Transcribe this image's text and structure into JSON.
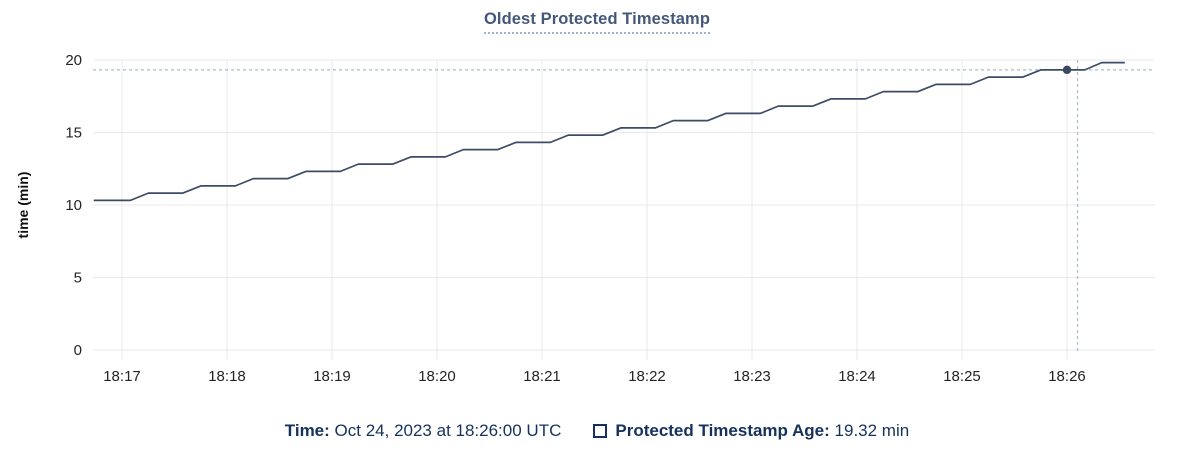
{
  "title": "Oldest Protected Timestamp",
  "colors": {
    "title": "#44587b",
    "title_underline": "#9fb3cb",
    "legend_text": "#16325c",
    "line": "#3d4c66",
    "marker": "#394960",
    "crosshair": "#a9bccb",
    "gridline": "#e9e9e9",
    "tick_mark": "#dedede",
    "tick_text": "#242424"
  },
  "legend": {
    "time_label": "Time:",
    "time_value": "Oct 24, 2023 at 18:26:00 UTC",
    "series_label": "Protected Timestamp Age:",
    "series_value": "19.32 min"
  },
  "chart_data": {
    "type": "line",
    "title": "Oldest Protected Timestamp",
    "xlabel": "",
    "ylabel": "time (min)",
    "ylim": [
      0,
      20
    ],
    "y_ticks": [
      0,
      5,
      10,
      15,
      20
    ],
    "x_tick_labels": [
      "18:17",
      "18:18",
      "18:19",
      "18:20",
      "18:21",
      "18:22",
      "18:23",
      "18:24",
      "18:25",
      "18:26"
    ],
    "x_unit": "minutes after 18:17 UTC",
    "grid": true,
    "legend_position": "bottom",
    "series": [
      {
        "name": "Protected Timestamp Age",
        "unit": "min",
        "points": [
          [
            -0.27,
            10.32
          ],
          [
            0.08,
            10.32
          ],
          [
            0.25,
            10.82
          ],
          [
            0.58,
            10.82
          ],
          [
            0.75,
            11.32
          ],
          [
            1.08,
            11.32
          ],
          [
            1.25,
            11.82
          ],
          [
            1.58,
            11.82
          ],
          [
            1.75,
            12.32
          ],
          [
            2.08,
            12.32
          ],
          [
            2.25,
            12.82
          ],
          [
            2.58,
            12.82
          ],
          [
            2.75,
            13.32
          ],
          [
            3.08,
            13.32
          ],
          [
            3.25,
            13.82
          ],
          [
            3.58,
            13.82
          ],
          [
            3.75,
            14.32
          ],
          [
            4.08,
            14.32
          ],
          [
            4.25,
            14.82
          ],
          [
            4.58,
            14.82
          ],
          [
            4.75,
            15.32
          ],
          [
            5.08,
            15.32
          ],
          [
            5.25,
            15.82
          ],
          [
            5.58,
            15.82
          ],
          [
            5.75,
            16.32
          ],
          [
            6.08,
            16.32
          ],
          [
            6.25,
            16.82
          ],
          [
            6.58,
            16.82
          ],
          [
            6.75,
            17.32
          ],
          [
            7.08,
            17.32
          ],
          [
            7.25,
            17.82
          ],
          [
            7.58,
            17.82
          ],
          [
            7.75,
            18.32
          ],
          [
            8.08,
            18.32
          ],
          [
            8.25,
            18.82
          ],
          [
            8.58,
            18.82
          ],
          [
            8.75,
            19.32
          ],
          [
            9.17,
            19.32
          ],
          [
            9.33,
            19.82
          ],
          [
            9.55,
            19.82
          ]
        ]
      }
    ],
    "crosshair": {
      "time": "18:26:00",
      "t_min": 9.1,
      "value": 19.32,
      "marker_t_min": 9.0
    }
  }
}
